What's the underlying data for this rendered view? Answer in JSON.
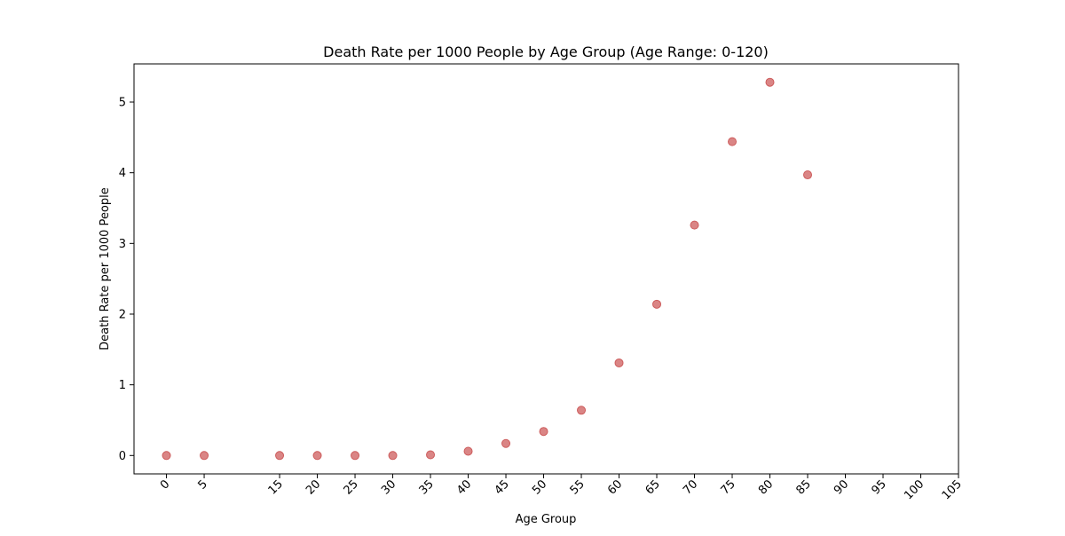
{
  "chart_data": {
    "type": "scatter",
    "title": "Death Rate per 1000 People by Age Group (Age Range: 0-120)",
    "xlabel": "Age Group",
    "ylabel": "Death Rate per 1000 People",
    "x_ticks": [
      "0",
      "5",
      "15",
      "20",
      "25",
      "30",
      "35",
      "40",
      "45",
      "50",
      "55",
      "60",
      "65",
      "70",
      "75",
      "80",
      "85",
      "90",
      "95",
      "100",
      "105"
    ],
    "y_ticks": [
      "0",
      "1",
      "2",
      "3",
      "4",
      "5"
    ],
    "xlim": [
      -4.3,
      105
    ],
    "ylim": [
      -0.26,
      5.54
    ],
    "grid": false,
    "legend": "none",
    "marker_color": "#cd5c5c",
    "points": [
      {
        "x": 0,
        "y": 0.0
      },
      {
        "x": 5,
        "y": 0.0
      },
      {
        "x": 15,
        "y": 0.0
      },
      {
        "x": 20,
        "y": 0.0
      },
      {
        "x": 25,
        "y": 0.0
      },
      {
        "x": 30,
        "y": 0.0
      },
      {
        "x": 35,
        "y": 0.01
      },
      {
        "x": 40,
        "y": 0.06
      },
      {
        "x": 45,
        "y": 0.17
      },
      {
        "x": 50,
        "y": 0.34
      },
      {
        "x": 55,
        "y": 0.64
      },
      {
        "x": 60,
        "y": 1.31
      },
      {
        "x": 65,
        "y": 2.14
      },
      {
        "x": 70,
        "y": 3.26
      },
      {
        "x": 75,
        "y": 4.44
      },
      {
        "x": 80,
        "y": 5.28
      },
      {
        "x": 85,
        "y": 3.97
      }
    ]
  }
}
